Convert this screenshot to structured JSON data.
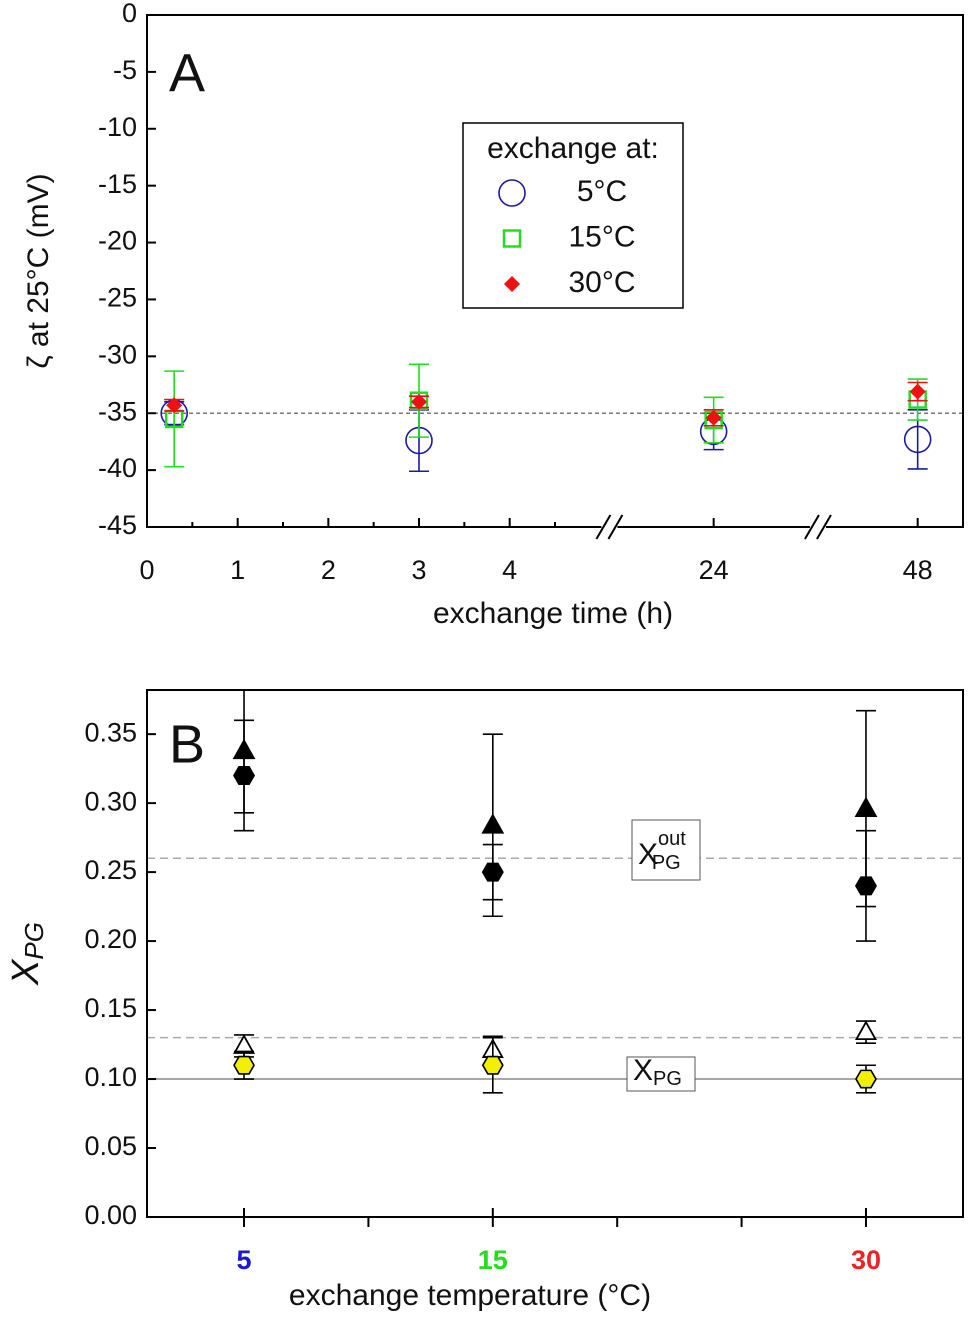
{
  "chart_data": [
    {
      "type": "scatter",
      "panel_label": "A",
      "y_label": "ζ at 25°C   (mV)",
      "x_label": "exchange time (h)",
      "xlim_segments": [
        [
          0,
          5.1
        ],
        [
          22.85,
          25.15
        ],
        [
          46.9,
          48.5
        ]
      ],
      "xticks": [
        0,
        1,
        2,
        3,
        4,
        24,
        48
      ],
      "xminor_ticks": [
        0.5,
        1.5,
        2.5,
        3.5,
        4.5
      ],
      "ylim": [
        -45,
        0
      ],
      "yticks": [
        0,
        -5,
        -10,
        -15,
        -20,
        -25,
        -30,
        -35,
        -40,
        -45
      ],
      "reference_lines": [
        {
          "value": -35,
          "style": "dotted",
          "color": "#777"
        }
      ],
      "legend_title": "exchange at:",
      "x": [
        0.3,
        3,
        24,
        48
      ],
      "series": [
        {
          "name": "5°C",
          "color": "#1a1aa6",
          "marker": "circle-open",
          "values": [
            -35,
            -37.4,
            -36.6,
            -37.3
          ],
          "errors": [
            1,
            2.7,
            1.6,
            2.6
          ]
        },
        {
          "name": "15°C",
          "color": "#22dd22",
          "marker": "square-open",
          "values": [
            -35.5,
            -33.9,
            -35.6,
            -33.8
          ],
          "errors": [
            4.2,
            3.2,
            2,
            1.8
          ]
        },
        {
          "name": "30°C",
          "color": "#ee1111",
          "marker": "diamond",
          "values": [
            -34.3,
            -34,
            -35.4,
            -33.1
          ],
          "errors": [
            0.5,
            0.5,
            0.7,
            0.8
          ]
        }
      ]
    },
    {
      "type": "scatter",
      "panel_label": "B",
      "y_label": "X",
      "y_label_sub": "PG",
      "x_label": "exchange temperature  (°C)",
      "xlim": [
        1.1,
        33.9
      ],
      "xticks": [
        5,
        15,
        30
      ],
      "xtick_colors": [
        "#1a1acc",
        "#22dd22",
        "#ee2222"
      ],
      "xminor_ticks": [
        10,
        20,
        25
      ],
      "ylim": [
        0,
        0.382
      ],
      "yticks": [
        {
          "value": 0,
          "label": "0.00"
        },
        {
          "value": 0.05,
          "label": "0.05"
        },
        {
          "value": 0.1,
          "label": "0.10"
        },
        {
          "value": 0.15,
          "label": "0.15"
        },
        {
          "value": 0.2,
          "label": "0.20"
        },
        {
          "value": 0.25,
          "label": "0.25"
        },
        {
          "value": 0.3,
          "label": "0.30"
        },
        {
          "value": 0.35,
          "label": "0.35"
        }
      ],
      "reference_lines": [
        {
          "value": 0.26,
          "style": "dashed",
          "color": "#aaa"
        },
        {
          "value": 0.13,
          "style": "dashed",
          "color": "#aaa"
        },
        {
          "value": 0.1,
          "style": "solid",
          "color": "#888"
        }
      ],
      "annotations": [
        {
          "text": "X",
          "sub": "PG",
          "sup": "out"
        },
        {
          "text": "X",
          "sub": "PG"
        }
      ],
      "x": [
        5,
        15,
        30
      ],
      "series": [
        {
          "color": "#000",
          "marker": "triangle",
          "values": [
            0.338,
            0.284,
            0.296
          ],
          "errors": [
            0.045,
            0.066,
            0.071
          ]
        },
        {
          "color": "#000",
          "marker": "hexagon",
          "values": [
            0.32,
            0.25,
            0.24
          ],
          "errors": [
            0.04,
            0.02,
            0.04
          ]
        },
        {
          "color": "#000",
          "marker": "triangle-open",
          "values": [
            0.124,
            0.121,
            0.134
          ],
          "errors": [
            0.008,
            0.01,
            0.008
          ]
        },
        {
          "color": "#f2f000",
          "marker": "hexagon-edge",
          "values": [
            0.11,
            0.11,
            0.1
          ],
          "errors": [
            0.01,
            0.02,
            0.01
          ]
        }
      ]
    }
  ]
}
